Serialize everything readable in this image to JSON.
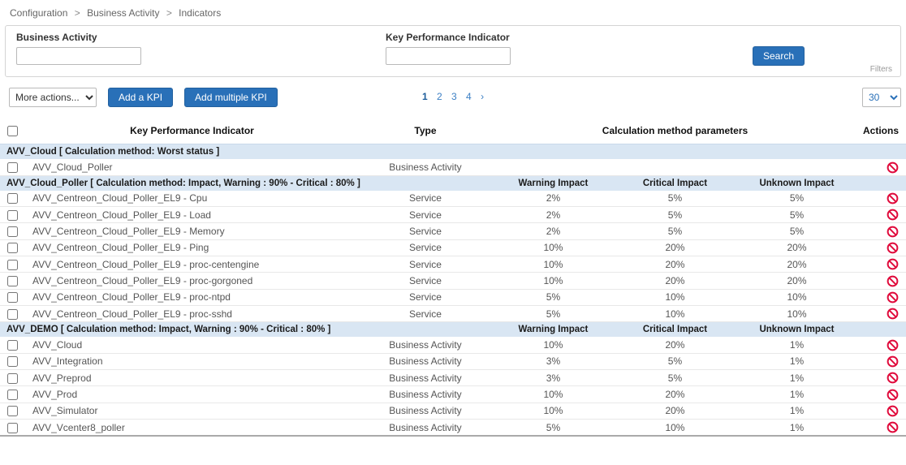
{
  "breadcrumb": {
    "items": [
      "Configuration",
      "Business Activity",
      "Indicators"
    ],
    "separator": ">"
  },
  "filter_panel": {
    "business_activity": {
      "label": "Business Activity",
      "value": ""
    },
    "kpi": {
      "label": "Key Performance Indicator",
      "value": ""
    },
    "search_button": "Search",
    "filters_link": "Filters"
  },
  "toolbar": {
    "more_actions": {
      "selected": "More actions..."
    },
    "add_kpi_button": "Add a KPI",
    "add_multiple_kpi_button": "Add multiple KPI",
    "pagination": {
      "current": "1",
      "others": [
        "2",
        "3",
        "4"
      ],
      "next": "›"
    },
    "page_size": {
      "selected": "30"
    }
  },
  "table": {
    "columns": {
      "kpi": "Key Performance Indicator",
      "type": "Type",
      "calc_params": "Calculation method parameters",
      "actions": "Actions",
      "warning_impact": "Warning Impact",
      "critical_impact": "Critical Impact",
      "unknown_impact": "Unknown Impact"
    },
    "groups": [
      {
        "title": "AVV_Cloud [ Calculation method: Worst status ]",
        "impact_headers": false,
        "rows": [
          {
            "name": "AVV_Cloud_Poller",
            "type": "Business Activity",
            "warning": "",
            "critical": "",
            "unknown": ""
          }
        ]
      },
      {
        "title": "AVV_Cloud_Poller [ Calculation method: Impact, Warning : 90% - Critical : 80% ]",
        "impact_headers": true,
        "rows": [
          {
            "name": "AVV_Centreon_Cloud_Poller_EL9 - Cpu",
            "type": "Service",
            "warning": "2%",
            "critical": "5%",
            "unknown": "5%"
          },
          {
            "name": "AVV_Centreon_Cloud_Poller_EL9 - Load",
            "type": "Service",
            "warning": "2%",
            "critical": "5%",
            "unknown": "5%"
          },
          {
            "name": "AVV_Centreon_Cloud_Poller_EL9 - Memory",
            "type": "Service",
            "warning": "2%",
            "critical": "5%",
            "unknown": "5%"
          },
          {
            "name": "AVV_Centreon_Cloud_Poller_EL9 - Ping",
            "type": "Service",
            "warning": "10%",
            "critical": "20%",
            "unknown": "20%"
          },
          {
            "name": "AVV_Centreon_Cloud_Poller_EL9 - proc-centengine",
            "type": "Service",
            "warning": "10%",
            "critical": "20%",
            "unknown": "20%"
          },
          {
            "name": "AVV_Centreon_Cloud_Poller_EL9 - proc-gorgoned",
            "type": "Service",
            "warning": "10%",
            "critical": "20%",
            "unknown": "20%"
          },
          {
            "name": "AVV_Centreon_Cloud_Poller_EL9 - proc-ntpd",
            "type": "Service",
            "warning": "5%",
            "critical": "10%",
            "unknown": "10%"
          },
          {
            "name": "AVV_Centreon_Cloud_Poller_EL9 - proc-sshd",
            "type": "Service",
            "warning": "5%",
            "critical": "10%",
            "unknown": "10%"
          }
        ]
      },
      {
        "title": "AVV_DEMO [ Calculation method: Impact, Warning : 90% - Critical : 80% ]",
        "impact_headers": true,
        "rows": [
          {
            "name": "AVV_Cloud",
            "type": "Business Activity",
            "warning": "10%",
            "critical": "20%",
            "unknown": "1%"
          },
          {
            "name": "AVV_Integration",
            "type": "Business Activity",
            "warning": "3%",
            "critical": "5%",
            "unknown": "1%"
          },
          {
            "name": "AVV_Preprod",
            "type": "Business Activity",
            "warning": "3%",
            "critical": "5%",
            "unknown": "1%"
          },
          {
            "name": "AVV_Prod",
            "type": "Business Activity",
            "warning": "10%",
            "critical": "20%",
            "unknown": "1%"
          },
          {
            "name": "AVV_Simulator",
            "type": "Business Activity",
            "warning": "10%",
            "critical": "20%",
            "unknown": "1%"
          },
          {
            "name": "AVV_Vcenter8_poller",
            "type": "Business Activity",
            "warning": "5%",
            "critical": "10%",
            "unknown": "1%"
          }
        ]
      }
    ]
  },
  "icons": {
    "row_action": "forbidden-icon"
  },
  "colors": {
    "primary_button": "#2970b8",
    "group_row_bg": "#d9e6f3",
    "forbidden_icon": "#e00b3c",
    "pagination_link": "#3b7fc4"
  }
}
